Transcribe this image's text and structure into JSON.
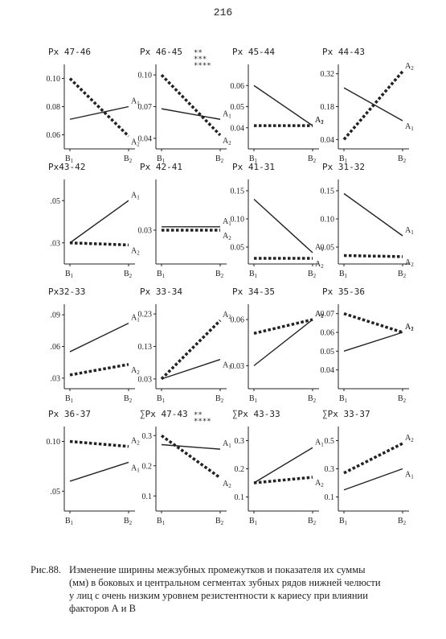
{
  "page_number": "216",
  "caption": {
    "label": "Рис.88.",
    "line1": "Изменение ширины межзубных промежутков и показателя их суммы",
    "line2": "(мм) в боковых и центральном сегментах зубных рядов нижней челюсти",
    "line3": "у лиц с очень низким уровнем резистентности к кариесу при влиянии",
    "line4": "факторов А и В"
  },
  "colors": {
    "ink": "#222222",
    "background": "#ffffff"
  },
  "chart_data": [
    {
      "type": "line",
      "title": "Px 47-46",
      "stars": "",
      "x": [
        "B1",
        "B2"
      ],
      "ylim": [
        0.05,
        0.11
      ],
      "yticks": [
        0.06,
        0.08,
        0.1
      ],
      "ytick_labels": [
        "0.06",
        "0.08",
        "0.10"
      ],
      "series": [
        {
          "name": "A1",
          "values": [
            0.071,
            0.08
          ],
          "style": "solid"
        },
        {
          "name": "A2",
          "values": [
            0.1,
            0.059
          ],
          "style": "dotted"
        }
      ]
    },
    {
      "type": "line",
      "title": "Px 46-45",
      "stars": "**\n***\n****",
      "x": [
        "B1",
        "B2"
      ],
      "ylim": [
        0.03,
        0.11
      ],
      "yticks": [
        0.04,
        0.07,
        0.1
      ],
      "ytick_labels": [
        "0.04",
        "0.07",
        "0.10"
      ],
      "series": [
        {
          "name": "A1",
          "values": [
            0.068,
            0.058
          ],
          "style": "solid"
        },
        {
          "name": "A2",
          "values": [
            0.1,
            0.043
          ],
          "style": "dotted"
        }
      ]
    },
    {
      "type": "line",
      "title": "Px 45-44",
      "stars": "",
      "x": [
        "B1",
        "B2"
      ],
      "ylim": [
        0.03,
        0.07
      ],
      "yticks": [
        0.04,
        0.05,
        0.06
      ],
      "ytick_labels": [
        "0.04",
        "0.05",
        "0.06"
      ],
      "series": [
        {
          "name": "A1",
          "values": [
            0.06,
            0.041
          ],
          "style": "solid"
        },
        {
          "name": "A2",
          "values": [
            0.041,
            0.041
          ],
          "style": "dotted"
        }
      ]
    },
    {
      "type": "line",
      "title": "Px 44-43",
      "stars": "",
      "x": [
        "B1",
        "B2"
      ],
      "ylim": [
        0,
        0.36
      ],
      "yticks": [
        0.04,
        0.18,
        0.32
      ],
      "ytick_labels": [
        "0.04",
        "0.18",
        "0.32"
      ],
      "series": [
        {
          "name": "A1",
          "values": [
            0.26,
            0.12
          ],
          "style": "solid"
        },
        {
          "name": "A2",
          "values": [
            0.04,
            0.33
          ],
          "style": "dotted"
        }
      ]
    },
    {
      "type": "line",
      "title": "Px43-42",
      "stars": "",
      "x": [
        "B1",
        "B2"
      ],
      "ylim": [
        0.02,
        0.06
      ],
      "yticks": [
        0.03,
        0.05
      ],
      "ytick_labels": [
        ".03",
        ".05"
      ],
      "series": [
        {
          "name": "A1",
          "values": [
            0.03,
            0.05
          ],
          "style": "solid"
        },
        {
          "name": "A2",
          "values": [
            0.03,
            0.029
          ],
          "style": "dotted"
        }
      ]
    },
    {
      "type": "line",
      "title": "Px 42-41",
      "stars": "",
      "x": [
        "B1",
        "B2"
      ],
      "ylim": [
        0.02,
        0.045
      ],
      "yticks": [
        0.03
      ],
      "ytick_labels": [
        "0.03"
      ],
      "series": [
        {
          "name": "A1",
          "values": [
            0.031,
            0.031
          ],
          "style": "solid"
        },
        {
          "name": "A2",
          "values": [
            0.03,
            0.03
          ],
          "style": "dotted"
        }
      ]
    },
    {
      "type": "line",
      "title": "Px 41-31",
      "stars": "",
      "x": [
        "B1",
        "B2"
      ],
      "ylim": [
        0.02,
        0.17
      ],
      "yticks": [
        0.05,
        0.1,
        0.15
      ],
      "ytick_labels": [
        "0.05",
        "0.10",
        "0.15"
      ],
      "series": [
        {
          "name": "A1",
          "values": [
            0.135,
            0.04
          ],
          "style": "solid"
        },
        {
          "name": "A2",
          "values": [
            0.03,
            0.03
          ],
          "style": "dotted"
        }
      ]
    },
    {
      "type": "line",
      "title": "Px 31-32",
      "stars": "",
      "x": [
        "B1",
        "B2"
      ],
      "ylim": [
        0.02,
        0.17
      ],
      "yticks": [
        0.05,
        0.1,
        0.15
      ],
      "ytick_labels": [
        "0.05",
        "0.10",
        "0.15"
      ],
      "series": [
        {
          "name": "A1",
          "values": [
            0.145,
            0.07
          ],
          "style": "solid"
        },
        {
          "name": "A2",
          "values": [
            0.035,
            0.033
          ],
          "style": "dotted"
        }
      ]
    },
    {
      "type": "line",
      "title": "Px32-33",
      "stars": "",
      "x": [
        "B1",
        "B2"
      ],
      "ylim": [
        0.02,
        0.1
      ],
      "yticks": [
        0.03,
        0.06,
        0.09
      ],
      "ytick_labels": [
        ".03",
        ".06",
        ".09"
      ],
      "series": [
        {
          "name": "A1",
          "values": [
            0.055,
            0.082
          ],
          "style": "solid"
        },
        {
          "name": "A2",
          "values": [
            0.033,
            0.043
          ],
          "style": "dotted"
        }
      ]
    },
    {
      "type": "line",
      "title": "Px 33-34",
      "stars": "",
      "x": [
        "B1",
        "B2"
      ],
      "ylim": [
        0,
        0.26
      ],
      "yticks": [
        0.03,
        0.13,
        0.23
      ],
      "ytick_labels": [
        "0.03",
        "0.13",
        "0.23"
      ],
      "series": [
        {
          "name": "A1",
          "values": [
            0.03,
            0.09
          ],
          "style": "solid"
        },
        {
          "name": "A2",
          "values": [
            0.03,
            0.21
          ],
          "style": "dotted"
        }
      ]
    },
    {
      "type": "line",
      "title": "Px 34-35",
      "stars": "",
      "x": [
        "B1",
        "B2"
      ],
      "ylim": [
        0.015,
        0.07
      ],
      "yticks": [
        0.03,
        0.06
      ],
      "ytick_labels": [
        "0.03",
        "0.06"
      ],
      "series": [
        {
          "name": "A1",
          "values": [
            0.03,
            0.06
          ],
          "style": "solid"
        },
        {
          "name": "A2",
          "values": [
            0.051,
            0.06
          ],
          "style": "dotted"
        }
      ]
    },
    {
      "type": "line",
      "title": "Px 35-36",
      "stars": "",
      "x": [
        "B1",
        "B2"
      ],
      "ylim": [
        0.03,
        0.075
      ],
      "yticks": [
        0.04,
        0.05,
        0.06,
        0.07
      ],
      "ytick_labels": [
        "0.04",
        "0.05",
        "0.06",
        "0.07"
      ],
      "series": [
        {
          "name": "A1",
          "values": [
            0.05,
            0.06
          ],
          "style": "solid"
        },
        {
          "name": "A2",
          "values": [
            0.07,
            0.06
          ],
          "style": "dotted"
        }
      ]
    },
    {
      "type": "line",
      "title": "Px 36-37",
      "stars": "",
      "x": [
        "B1",
        "B2"
      ],
      "ylim": [
        0.03,
        0.115
      ],
      "yticks": [
        0.05,
        0.1
      ],
      "ytick_labels": [
        ".05",
        "0.10"
      ],
      "series": [
        {
          "name": "A1",
          "values": [
            0.06,
            0.079
          ],
          "style": "solid"
        },
        {
          "name": "A2",
          "values": [
            0.1,
            0.095
          ],
          "style": "dotted"
        }
      ]
    },
    {
      "type": "line",
      "title": "∑Px 47-43",
      "stars": "**\n****",
      "x": [
        "B1",
        "B2"
      ],
      "ylim": [
        0.05,
        0.33
      ],
      "yticks": [
        0.1,
        0.2,
        0.3
      ],
      "ytick_labels": [
        "0.1",
        "0.2",
        "0.3"
      ],
      "series": [
        {
          "name": "A1",
          "values": [
            0.27,
            0.255
          ],
          "style": "solid"
        },
        {
          "name": "A2",
          "values": [
            0.3,
            0.16
          ],
          "style": "dotted"
        }
      ]
    },
    {
      "type": "line",
      "title": "∑Px 43-33",
      "stars": "",
      "x": [
        "B1",
        "B2"
      ],
      "ylim": [
        0.05,
        0.35
      ],
      "yticks": [
        0.1,
        0.2,
        0.3
      ],
      "ytick_labels": [
        "0.1",
        "0.2",
        "0.3"
      ],
      "series": [
        {
          "name": "A1",
          "values": [
            0.15,
            0.275
          ],
          "style": "solid"
        },
        {
          "name": "A2",
          "values": [
            0.15,
            0.17
          ],
          "style": "dotted"
        }
      ]
    },
    {
      "type": "line",
      "title": "∑Px 33-37",
      "stars": "",
      "x": [
        "B1",
        "B2"
      ],
      "ylim": [
        0.0,
        0.6
      ],
      "yticks": [
        0.1,
        0.3,
        0.5
      ],
      "ytick_labels": [
        "0.1",
        "0.3",
        "0.5"
      ],
      "series": [
        {
          "name": "A1",
          "values": [
            0.15,
            0.3
          ],
          "style": "solid"
        },
        {
          "name": "A2",
          "values": [
            0.27,
            0.48
          ],
          "style": "dotted"
        }
      ]
    }
  ]
}
